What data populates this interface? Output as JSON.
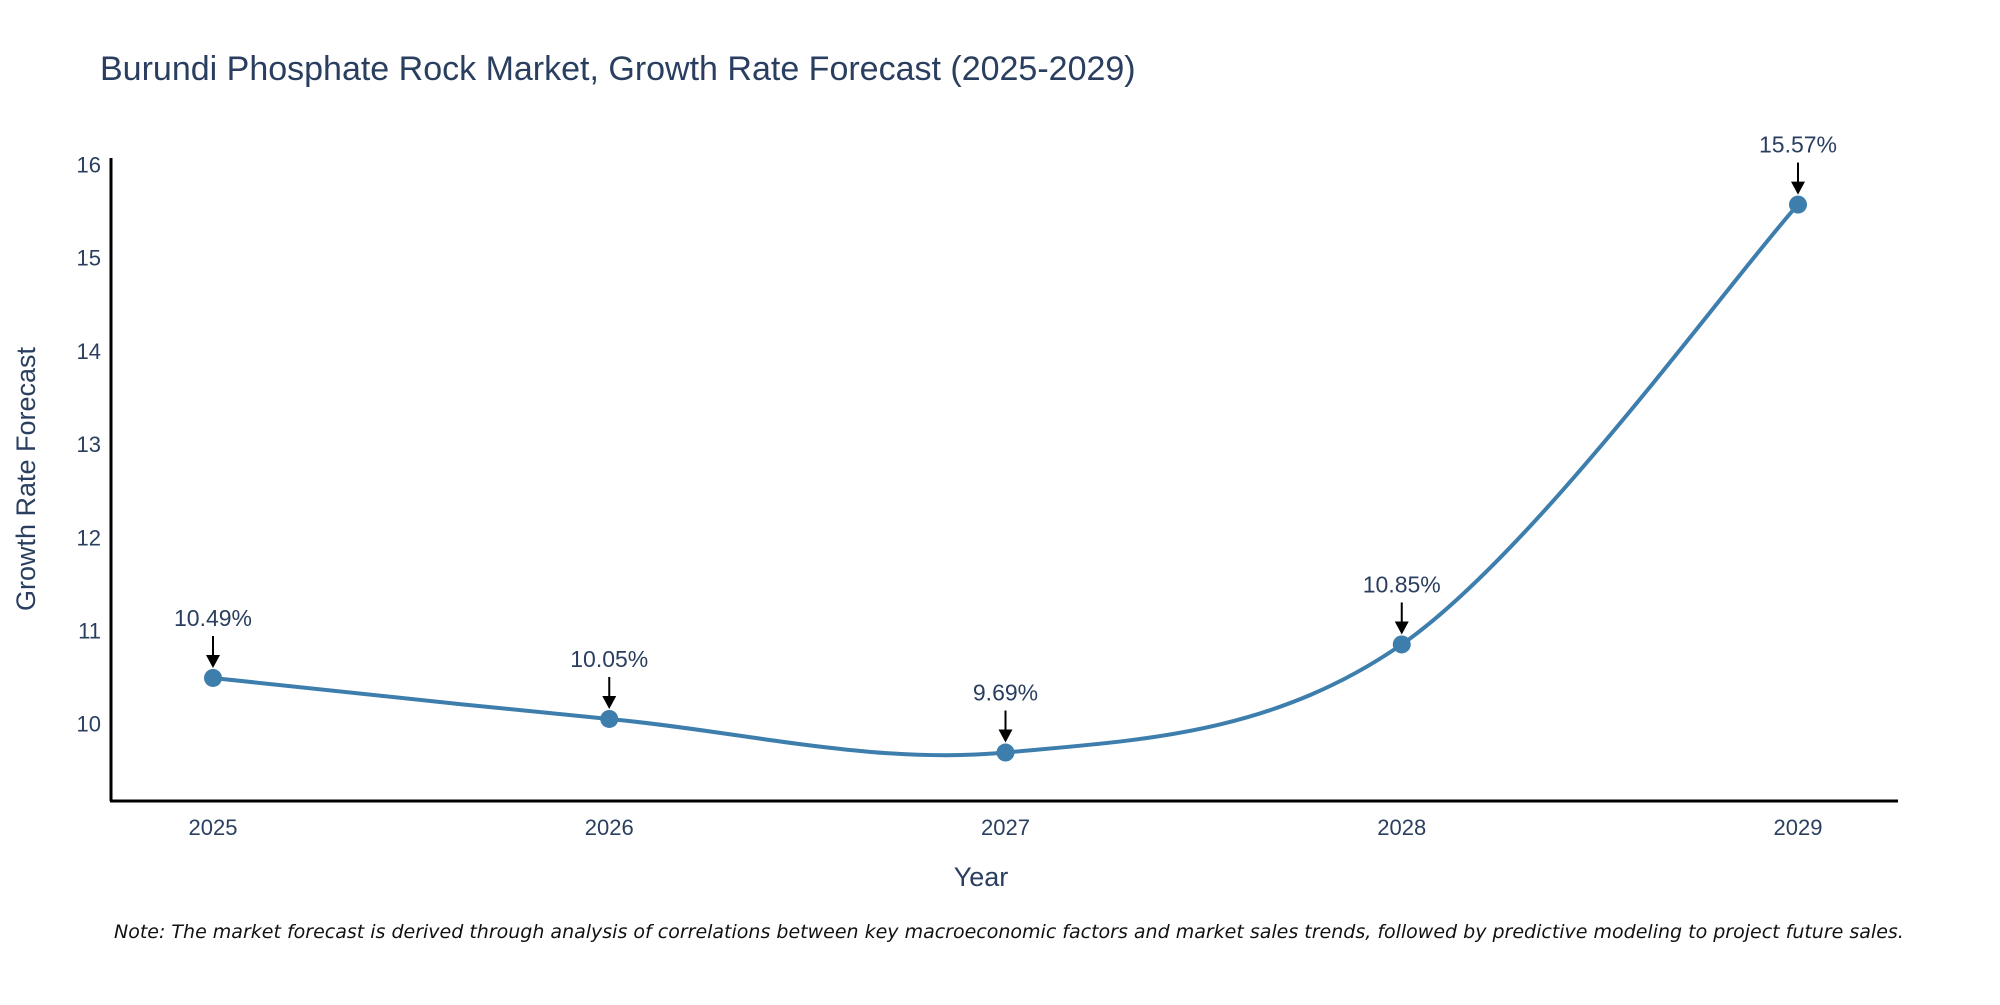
{
  "chart_data": {
    "type": "line",
    "title": "Burundi Phosphate Rock Market, Growth Rate Forecast (2025-2029)",
    "xlabel": "Year",
    "ylabel": "Growth Rate Forecast",
    "categories": [
      "2025",
      "2026",
      "2027",
      "2028",
      "2029"
    ],
    "values": [
      10.49,
      10.05,
      9.69,
      10.85,
      15.57
    ],
    "data_labels": [
      "10.49%",
      "10.05%",
      "9.69%",
      "10.85%",
      "15.57%"
    ],
    "yticks": [
      10,
      11,
      12,
      13,
      14,
      15,
      16
    ],
    "ylim": [
      9.17,
      16.07
    ],
    "grid": false,
    "line_shape": "spline",
    "line_color": "#3d7ead",
    "marker_color": "#3d7ead",
    "arrow_color": "#000000"
  },
  "note": "Note: The market forecast is derived through analysis of correlations between key macroeconomic factors and market sales trends, followed by predictive modeling to project future sales."
}
